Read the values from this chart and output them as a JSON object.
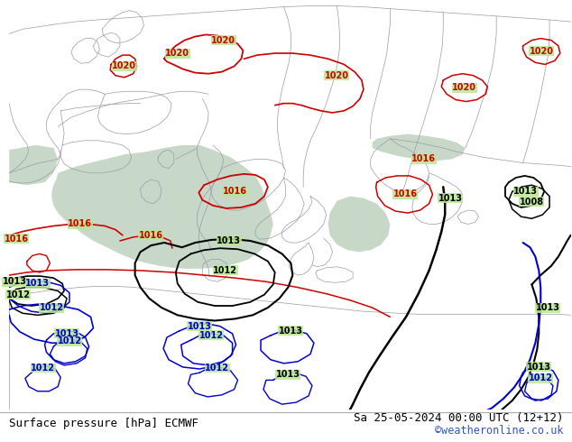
{
  "title_left": "Surface pressure [hPa] ECMWF",
  "title_right": "Sa 25-05-2024 00:00 UTC (12+12)",
  "watermark": "©weatheronline.co.uk",
  "bg_land": "#b8e890",
  "bg_sea": "#c8d8c8",
  "border_color": "#9999aa",
  "red": "#cc0000",
  "blue": "#0000cc",
  "black": "#000000",
  "footer_fontsize": 9,
  "watermark_color": "#3355bb"
}
